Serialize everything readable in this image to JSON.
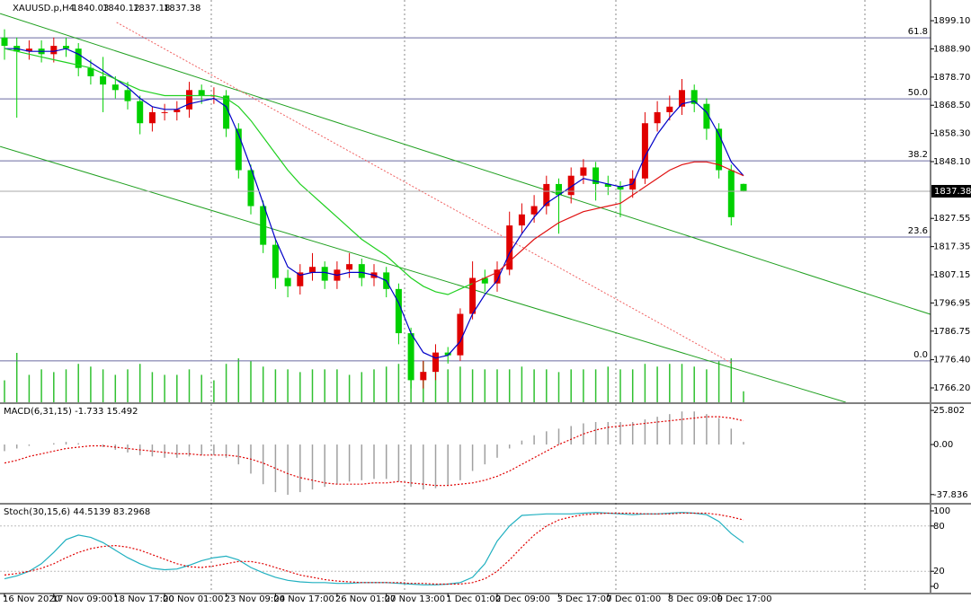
{
  "chart_data": [
    {
      "type": "candlestick",
      "title": "XAUUSD.p,H4",
      "categories": [
        "16 Nov 2020",
        null,
        null,
        null,
        "17 Nov 09:00",
        null,
        null,
        null,
        null,
        "18 Nov 17:00",
        null,
        null,
        null,
        "20 Nov 01:00",
        null,
        null,
        null,
        null,
        "23 Nov 09:00",
        null,
        null,
        null,
        "24 Nov 17:00",
        null,
        null,
        null,
        null,
        "26 Nov 01:00",
        null,
        null,
        null,
        "27 Nov 13:00",
        null,
        null,
        null,
        null,
        "1 Dec 01:00",
        null,
        null,
        null,
        "2 Dec 09:00",
        null,
        null,
        null,
        null,
        "3 Dec 17:00",
        null,
        null,
        null,
        "7 Dec 01:00",
        null,
        null,
        null,
        null,
        "8 Dec 09:00",
        null,
        null,
        null,
        "9 Dec 17:00",
        null,
        null
      ],
      "open": [
        1893,
        1890,
        1888,
        1889,
        1887,
        1890,
        1889,
        1882,
        1879,
        1876,
        1874,
        1870,
        1862,
        1866,
        1866,
        1867,
        1874,
        1872,
        1872,
        1860,
        1845,
        1832,
        1818,
        1806,
        1803,
        1808,
        1810,
        1805,
        1809,
        1811,
        1806,
        1808,
        1802,
        1786,
        1769,
        1772,
        1779,
        1778,
        1793,
        1806,
        1804,
        1809,
        1825,
        1829,
        1832,
        1840,
        1836,
        1843,
        1846,
        1840,
        1839,
        1838,
        1842,
        1862,
        1866,
        1868,
        1874,
        1869,
        1860,
        1845,
        1840.03
      ],
      "high": [
        1896,
        1893,
        1892,
        1892,
        1893,
        1893,
        1891,
        1885,
        1886,
        1879,
        1877,
        1872,
        1868,
        1869,
        1870,
        1877,
        1876,
        1875,
        1874,
        1862,
        1847,
        1834,
        1820,
        1809,
        1811,
        1815,
        1812,
        1812,
        1815,
        1813,
        1811,
        1810,
        1804,
        1788,
        1776,
        1782,
        1781,
        1795,
        1812,
        1809,
        1812,
        1830,
        1833,
        1836,
        1843,
        1842,
        1846,
        1849,
        1848,
        1843,
        1841,
        1845,
        1866,
        1870,
        1872,
        1878,
        1876,
        1871,
        1862,
        1847,
        1840.12
      ],
      "low": [
        1885,
        1864,
        1885,
        1884,
        1884,
        1886,
        1879,
        1876,
        1866,
        1871,
        1867,
        1858,
        1859,
        1863,
        1863,
        1864,
        1869,
        1869,
        1857,
        1842,
        1829,
        1815,
        1802,
        1799,
        1800,
        1805,
        1802,
        1802,
        1806,
        1803,
        1803,
        1799,
        1782,
        1766,
        1766,
        1769,
        1775,
        1776,
        1791,
        1801,
        1801,
        1807,
        1822,
        1826,
        1829,
        1822,
        1833,
        1840,
        1834,
        1836,
        1828,
        1835,
        1840,
        1859,
        1863,
        1865,
        1866,
        1856,
        1842,
        1825,
        1837.18
      ],
      "close": [
        1890,
        1888,
        1889,
        1887,
        1890,
        1889,
        1882,
        1879,
        1876,
        1874,
        1870,
        1862,
        1866,
        1866,
        1867,
        1874,
        1872,
        1872,
        1860,
        1845,
        1832,
        1818,
        1806,
        1803,
        1808,
        1810,
        1805,
        1809,
        1811,
        1806,
        1808,
        1802,
        1786,
        1769,
        1772,
        1779,
        1778,
        1793,
        1806,
        1804,
        1809,
        1825,
        1829,
        1832,
        1840,
        1836,
        1843,
        1846,
        1840,
        1839,
        1838,
        1842,
        1862,
        1866,
        1868,
        1874,
        1869,
        1860,
        1845,
        1828,
        1837.38
      ],
      "up_color": "#e00000",
      "down_color": "#00d000",
      "lines": [
        {
          "color": "#0000c8",
          "values": [
            1889,
            1889,
            1888,
            1888,
            1888,
            1889,
            1887,
            1884,
            1881,
            1878,
            1875,
            1871,
            1868,
            1867,
            1867,
            1869,
            1870,
            1871,
            1868,
            1858,
            1846,
            1833,
            1820,
            1810,
            1807,
            1808,
            1808,
            1807,
            1808,
            1808,
            1807,
            1805,
            1797,
            1786,
            1779,
            1777,
            1778,
            1783,
            1793,
            1800,
            1805,
            1815,
            1822,
            1828,
            1833,
            1836,
            1839,
            1842,
            1841,
            1840,
            1839,
            1840,
            1850,
            1858,
            1864,
            1869,
            1870,
            1866,
            1858,
            1848,
            1843
          ]
        },
        {
          "color": "#20d020",
          "values": [
            1889,
            1888,
            1887,
            1886,
            1885,
            1884,
            1883,
            1882,
            1880,
            1878,
            1876,
            1874,
            1873,
            1872,
            1872,
            1872,
            1872,
            1872,
            1871,
            1868,
            1863,
            1857,
            1851,
            1845,
            1840,
            1836,
            1832,
            1828,
            1824,
            1820,
            1817,
            1814,
            1810,
            1806,
            1803,
            1801,
            1800,
            1802,
            1804,
            null,
            null,
            null,
            null,
            null,
            null,
            null,
            null,
            null,
            null,
            null,
            null,
            null,
            null,
            null,
            null,
            null,
            null,
            null,
            null,
            null,
            null
          ]
        },
        {
          "color": "#e01010",
          "values": [
            null,
            null,
            null,
            null,
            null,
            null,
            null,
            null,
            null,
            null,
            null,
            null,
            null,
            null,
            null,
            null,
            null,
            null,
            null,
            null,
            null,
            null,
            null,
            null,
            null,
            null,
            null,
            null,
            null,
            null,
            null,
            null,
            null,
            null,
            null,
            null,
            null,
            null,
            1804,
            1806,
            1808,
            1812,
            1816,
            1820,
            1823,
            1826,
            1828,
            1830,
            1831,
            1832,
            1833,
            1836,
            1839,
            1842,
            1845,
            1847,
            1848,
            1848,
            1847,
            1845,
            1843
          ]
        }
      ],
      "volume": {
        "color": "#30c030",
        "values": [
          4000,
          9000,
          5000,
          6000,
          5500,
          6000,
          7000,
          6500,
          6000,
          5000,
          6000,
          7000,
          5500,
          5000,
          5000,
          6000,
          5000,
          4000,
          7000,
          8000,
          7500,
          6500,
          6000,
          6000,
          5500,
          6000,
          6000,
          6000,
          5000,
          5500,
          6000,
          6500,
          7000,
          8000,
          7500,
          6000,
          6000,
          6500,
          6000,
          6000,
          6000,
          6000,
          6500,
          6000,
          6000,
          5500,
          6000,
          6000,
          6000,
          6500,
          6000,
          6000,
          7000,
          6500,
          7000,
          7000,
          6500,
          6000,
          7500,
          8000,
          2000
        ]
      },
      "levels": [
        {
          "value": 1892.9,
          "label": "61.8"
        },
        {
          "value": 1870.8,
          "label": "50.0"
        },
        {
          "value": 1848.4,
          "label": "38.2"
        },
        {
          "value": 1820.8,
          "label": "23.6"
        },
        {
          "value": 1776.0,
          "label": "0.0"
        }
      ],
      "trendlines": [
        {
          "color": "#20a020",
          "dashed": false,
          "points": [
            [
              -0.36,
              1901.7
            ],
            [
              75.2,
              1792.8
            ]
          ]
        },
        {
          "color": "#20a020",
          "dashed": false,
          "points": [
            [
              -0.36,
              1853.6
            ],
            [
              68.3,
              1761
            ]
          ]
        },
        {
          "color": "#f06060",
          "dashed": true,
          "points": [
            [
              9.1,
              1898.5
            ],
            [
              59.1,
              1775
            ]
          ]
        }
      ],
      "ylim": [
        1761.0,
        1906.6
      ],
      "yticks": [
        {
          "value": 1899.1,
          "label": "1899.10"
        },
        {
          "value": 1888.9,
          "label": "1888.90"
        },
        {
          "value": 1878.7,
          "label": "1878.70"
        },
        {
          "value": 1868.5,
          "label": "1868.50"
        },
        {
          "value": 1858.3,
          "label": "1858.30"
        },
        {
          "value": 1848.1,
          "label": "1848.10"
        },
        1827.55,
        1817.35,
        1807.15,
        1796.95,
        1786.75,
        {
          "value": 1776.4,
          "label": "1776.40"
        },
        {
          "value": 1766.2,
          "label": "1766.20"
        }
      ]
    },
    {
      "type": "macd",
      "title": "MACD(6,31,15) -1.733 15.492",
      "histogram": {
        "color": "#a0a0a0",
        "values": [
          -5,
          -3,
          -1,
          0,
          1,
          2,
          1,
          0,
          -2,
          -4,
          -6,
          -8,
          -9,
          -10,
          -10,
          -9,
          -8,
          -8,
          -10,
          -15,
          -22,
          -30,
          -36,
          -38,
          -36,
          -34,
          -32,
          -30,
          -28,
          -27,
          -26,
          -26,
          -28,
          -32,
          -34,
          -33,
          -31,
          -27,
          -20,
          -15,
          -10,
          -3,
          3,
          7,
          10,
          12,
          14,
          16,
          17,
          17,
          17,
          17,
          19,
          21,
          23,
          25,
          25,
          23,
          20,
          12,
          2
        ]
      },
      "signal": {
        "color": "#e00000",
        "values": [
          -14,
          -12,
          -9,
          -7,
          -5,
          -3,
          -2,
          -1,
          -1,
          -2,
          -3,
          -4,
          -5,
          -6,
          -7,
          -7,
          -8,
          -8,
          -8,
          -9,
          -11,
          -14,
          -18,
          -22,
          -25,
          -27,
          -29,
          -30,
          -30,
          -30,
          -29,
          -29,
          -28,
          -29,
          -30,
          -31,
          -31,
          -30,
          -29,
          -27,
          -24,
          -20,
          -15,
          -10,
          -5,
          0,
          4,
          8,
          11,
          13,
          14,
          15,
          16,
          17,
          18,
          19,
          20,
          21,
          21,
          20,
          18
        ]
      },
      "ylim": [
        -44.1,
        30.6
      ],
      "yticks": [
        25.802,
        {
          "value": 0,
          "label": "0.00"
        },
        -37.836
      ]
    },
    {
      "type": "line",
      "title": "Stoch(30,15,6) 44.5139 83.2968",
      "series": [
        {
          "color": "#20b0c0",
          "dashed": false,
          "values": [
            10,
            14,
            20,
            30,
            45,
            62,
            68,
            65,
            58,
            48,
            38,
            30,
            24,
            22,
            23,
            28,
            34,
            38,
            40,
            35,
            25,
            18,
            12,
            8,
            6,
            5,
            5,
            4,
            4,
            5,
            5,
            5,
            4,
            3,
            2,
            2,
            3,
            5,
            12,
            30,
            60,
            80,
            94,
            95,
            96,
            96,
            96,
            97,
            98,
            97,
            96,
            95,
            96,
            96,
            97,
            98,
            97,
            95,
            86,
            70,
            58
          ]
        },
        {
          "color": "#e00000",
          "dashed": true,
          "values": [
            15,
            17,
            20,
            24,
            30,
            38,
            45,
            50,
            53,
            54,
            52,
            48,
            42,
            36,
            30,
            26,
            25,
            27,
            30,
            33,
            33,
            30,
            25,
            20,
            15,
            12,
            9,
            7,
            6,
            5,
            5,
            5,
            5,
            4,
            4,
            3,
            3,
            3,
            5,
            10,
            20,
            35,
            52,
            68,
            80,
            88,
            92,
            95,
            96,
            97,
            97,
            97,
            96,
            96,
            96,
            97,
            97,
            97,
            95,
            92,
            88
          ]
        }
      ],
      "levels": [
        80,
        20
      ],
      "ylim": [
        -8.3,
        108.3
      ],
      "yticks": [
        100,
        80,
        20,
        0
      ]
    }
  ]
}
